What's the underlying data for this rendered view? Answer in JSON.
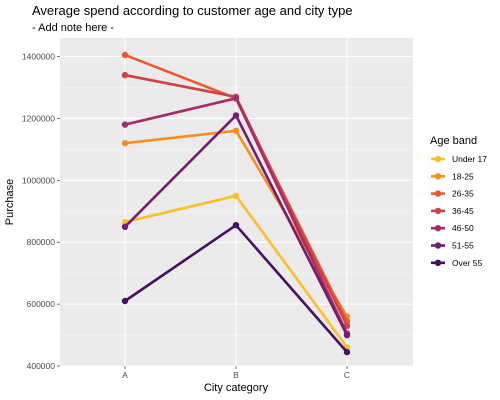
{
  "chart_data": {
    "type": "line",
    "title": "Average spend according to customer age and city type",
    "subtitle": "- Add note here -",
    "xlabel": "City category",
    "ylabel": "Purchase",
    "categories": [
      "A",
      "B",
      "C"
    ],
    "ylim": [
      400000,
      1460000
    ],
    "yticks": [
      400000,
      600000,
      800000,
      1000000,
      1200000,
      1400000
    ],
    "ytick_labels": [
      "400000",
      "600000",
      "800000",
      "1000000",
      "1200000",
      "1400000"
    ],
    "grid": true,
    "legend_title": "Age band",
    "legend_position": "right",
    "series": [
      {
        "name": "Under 17",
        "color": "#fbbf2a",
        "values": [
          865000,
          950000,
          460000
        ]
      },
      {
        "name": "18-25",
        "color": "#f98e1b",
        "values": [
          1120000,
          1160000,
          560000
        ]
      },
      {
        "name": "26-35",
        "color": "#eb5a2c",
        "values": [
          1405000,
          1265000,
          545000
        ]
      },
      {
        "name": "36-45",
        "color": "#cf4348",
        "values": [
          1340000,
          1270000,
          530000
        ]
      },
      {
        "name": "46-50",
        "color": "#a72b69",
        "values": [
          1180000,
          1265000,
          505000
        ]
      },
      {
        "name": "51-55",
        "color": "#761b74",
        "values": [
          850000,
          1210000,
          500000
        ]
      },
      {
        "name": "Over 55",
        "color": "#45105f",
        "values": [
          610000,
          855000,
          445000
        ]
      }
    ]
  }
}
